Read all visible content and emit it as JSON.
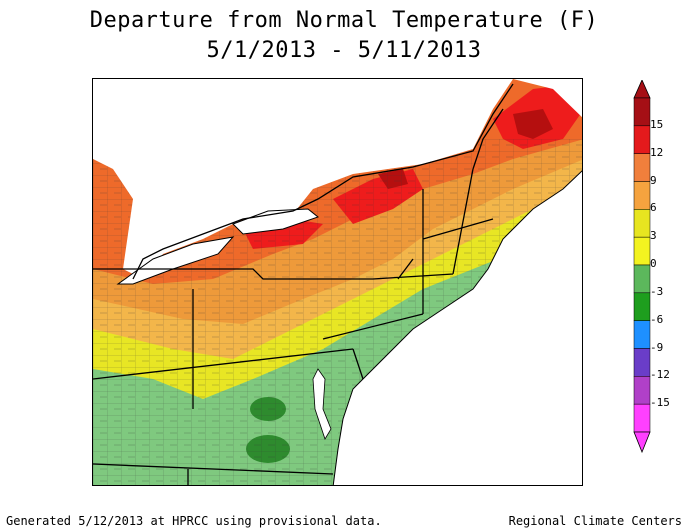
{
  "title": {
    "line1": "Departure from Normal Temperature (F)",
    "line2": "5/1/2013 - 5/11/2013"
  },
  "legend": {
    "colors": [
      "#a50f15",
      "#e41a1c",
      "#f07f3c",
      "#f5a33f",
      "#e7e520",
      "#f3f320",
      "#5cb85c",
      "#1e9e1e",
      "#1e90ff",
      "#6a3dc8",
      "#b040c8",
      "#ff40ff"
    ],
    "ticks": [
      "15",
      "12",
      "9",
      "6",
      "3",
      "0",
      "-3",
      "-6",
      "-9",
      "-12",
      "-15"
    ]
  },
  "map_colors": {
    "water": "#ffffff",
    "dark_red": "#b50f0f",
    "red": "#ee1c1c",
    "orange_red": "#ee6a2a",
    "orange": "#ee9a3a",
    "light_orange": "#f3b64a",
    "yellow": "#e8e624",
    "light_green": "#7fc97f",
    "green": "#5aae5a",
    "dark_green": "#2e8b2e"
  },
  "footer": {
    "left": "Generated 5/12/2013 at HPRCC using provisional data.",
    "right": "Regional Climate Centers"
  }
}
